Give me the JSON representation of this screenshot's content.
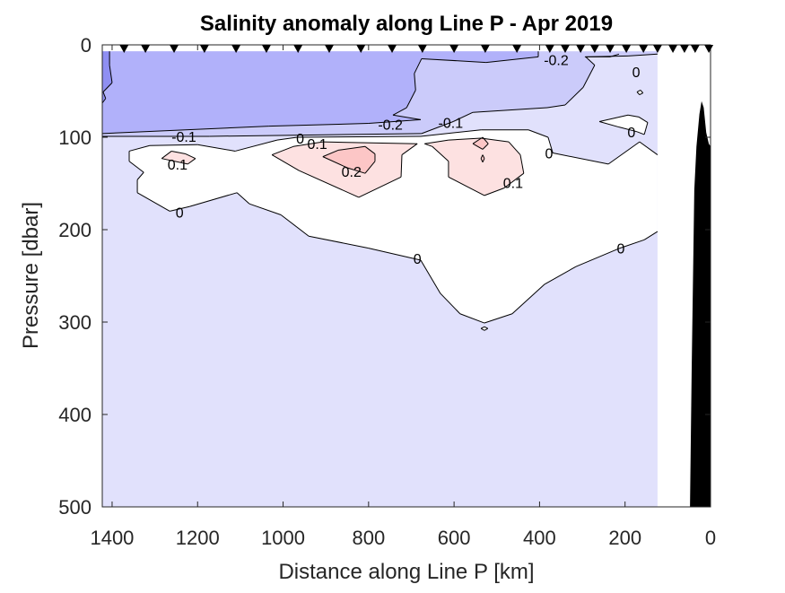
{
  "chart_data": {
    "type": "contour",
    "title": "Salinity anomaly along Line P - Apr 2019",
    "xlabel": "Distance along Line P [km]",
    "ylabel": "Pressure [dbar]",
    "xlim": [
      1423,
      0
    ],
    "ylim": [
      0,
      500
    ],
    "x_reversed": true,
    "y_reversed": true,
    "x_ticks": [
      "1400",
      "1200",
      "1000",
      "800",
      "600",
      "400",
      "200",
      "0"
    ],
    "y_ticks": [
      "0",
      "100",
      "200",
      "300",
      "400",
      "500"
    ],
    "grid": false,
    "contour_levels": [
      -0.3,
      -0.2,
      -0.1,
      0,
      0.1,
      0.2
    ],
    "colors": {
      "below_-0.3": "#8f8ff2",
      "-0.3_to_-0.2": "#b1b1fa",
      "-0.2_to_-0.1": "#cbcbfa",
      "-0.1_to_0": "#e1e1fc",
      "0_to_0.1": "#ffffff",
      "0.1_to_0.2": "#fde1e1",
      "above_0.2": "#fcc6c6",
      "bathymetry": "#000000"
    },
    "regions": [
      {
        "level": "-0.1_to_0",
        "points": [
          [
            1423,
            7
          ],
          [
            124,
            7
          ],
          [
            124,
            500
          ],
          [
            1423,
            500
          ]
        ]
      },
      {
        "level": "-0.2_to_-0.1",
        "points": [
          [
            1423,
            7
          ],
          [
            124,
            7
          ],
          [
            124,
            10
          ],
          [
            193,
            12
          ],
          [
            292,
            13
          ],
          [
            271,
            22
          ],
          [
            298,
            46
          ],
          [
            340,
            65
          ],
          [
            382,
            68
          ],
          [
            556,
            73
          ],
          [
            602,
            83
          ],
          [
            676,
            96
          ],
          [
            1173,
            99
          ],
          [
            1423,
            99
          ]
        ]
      },
      {
        "level": "-0.3_to_-0.2",
        "points": [
          [
            1423,
            7
          ],
          [
            403,
            7
          ],
          [
            403,
            13
          ],
          [
            525,
            19
          ],
          [
            676,
            15
          ],
          [
            693,
            31
          ],
          [
            690,
            49
          ],
          [
            711,
            68
          ],
          [
            743,
            76
          ],
          [
            678,
            81
          ],
          [
            800,
            85
          ],
          [
            1033,
            88
          ],
          [
            1423,
            96
          ]
        ]
      },
      {
        "level": "below_-0.3",
        "points": [
          [
            1423,
            7
          ],
          [
            1406,
            7
          ],
          [
            1406,
            22
          ],
          [
            1400,
            41
          ],
          [
            1421,
            51
          ],
          [
            1415,
            58
          ],
          [
            1423,
            63
          ]
        ]
      },
      {
        "level": "0_to_0.1",
        "points": [
          [
            1360,
            115
          ],
          [
            1312,
            109
          ],
          [
            1200,
            108
          ],
          [
            1112,
            115
          ],
          [
            1014,
            103
          ],
          [
            967,
            100
          ],
          [
            678,
            99
          ],
          [
            537,
            92
          ],
          [
            426,
            92
          ],
          [
            380,
            100
          ],
          [
            369,
            117
          ],
          [
            239,
            129
          ],
          [
            166,
            105
          ],
          [
            124,
            119
          ],
          [
            124,
            202
          ],
          [
            155,
            211
          ],
          [
            212,
            220
          ],
          [
            315,
            240
          ],
          [
            388,
            259
          ],
          [
            464,
            291
          ],
          [
            529,
            301
          ],
          [
            586,
            291
          ],
          [
            632,
            269
          ],
          [
            678,
            233
          ],
          [
            800,
            220
          ],
          [
            940,
            207
          ],
          [
            1005,
            184
          ],
          [
            1079,
            172
          ],
          [
            1108,
            160
          ],
          [
            1219,
            175
          ],
          [
            1265,
            180
          ],
          [
            1341,
            160
          ],
          [
            1341,
            146
          ],
          [
            1326,
            138
          ],
          [
            1360,
            126
          ]
        ]
      },
      {
        "level": "0_to_0.1",
        "points": [
          [
            260,
            83
          ],
          [
            193,
            76
          ],
          [
            168,
            78
          ],
          [
            147,
            84
          ],
          [
            155,
            97
          ],
          [
            172,
            94
          ],
          [
            214,
            89
          ]
        ]
      },
      {
        "level": "0_to_0.1",
        "points": [
          [
            172,
            51
          ],
          [
            164,
            49
          ],
          [
            158,
            52
          ],
          [
            166,
            54
          ]
        ]
      },
      {
        "level": "0_to_0.1",
        "points": [
          [
            537,
            307
          ],
          [
            529,
            305
          ],
          [
            521,
            307
          ],
          [
            529,
            309
          ]
        ]
      },
      {
        "level": "0.1_to_0.2",
        "points": [
          [
            1284,
            123
          ],
          [
            1261,
            115
          ],
          [
            1228,
            118
          ],
          [
            1205,
            123
          ],
          [
            1223,
            129
          ]
        ]
      },
      {
        "level": "0.1_to_0.2",
        "points": [
          [
            1026,
            119
          ],
          [
            976,
            110
          ],
          [
            907,
            105
          ],
          [
            686,
            107
          ],
          [
            722,
            119
          ],
          [
            724,
            143
          ],
          [
            823,
            165
          ],
          [
            963,
            136
          ]
        ]
      },
      {
        "level": "0.1_to_0.2",
        "points": [
          [
            669,
            107
          ],
          [
            613,
            103
          ],
          [
            537,
            101
          ],
          [
            472,
            105
          ],
          [
            445,
            119
          ],
          [
            437,
            139
          ],
          [
            483,
            155
          ],
          [
            529,
            163
          ],
          [
            613,
            143
          ],
          [
            613,
            126
          ],
          [
            651,
            110
          ]
        ]
      },
      {
        "level": "above_0.2",
        "points": [
          [
            907,
            121
          ],
          [
            871,
            114
          ],
          [
            808,
            110
          ],
          [
            785,
            118
          ],
          [
            785,
            126
          ],
          [
            808,
            139
          ],
          [
            850,
            133
          ]
        ]
      },
      {
        "level": "above_0.2",
        "points": [
          [
            556,
            107
          ],
          [
            533,
            100
          ],
          [
            520,
            107
          ],
          [
            533,
            113
          ]
        ]
      },
      {
        "level": "above_0.2",
        "points": [
          [
            533,
            119
          ],
          [
            529,
            123
          ],
          [
            533,
            127
          ],
          [
            537,
            123
          ]
        ]
      }
    ],
    "extra_lines": [
      [
        [
          294,
          13
        ],
        [
          235,
          13
        ],
        [
          214,
          10
        ]
      ]
    ],
    "contour_labels": [
      {
        "text": "-0.2",
        "x": 361,
        "y": 16
      },
      {
        "text": "0",
        "x": 174,
        "y": 29
      },
      {
        "text": "-0.2",
        "x": 749,
        "y": 86
      },
      {
        "text": "-0.1",
        "x": 608,
        "y": 84
      },
      {
        "text": "-0.1",
        "x": 1232,
        "y": 99
      },
      {
        "text": "0",
        "x": 960,
        "y": 101
      },
      {
        "text": "0.1",
        "x": 920,
        "y": 107
      },
      {
        "text": "0.2",
        "x": 840,
        "y": 137
      },
      {
        "text": "0.1",
        "x": 1247,
        "y": 129
      },
      {
        "text": "0",
        "x": 1242,
        "y": 181
      },
      {
        "text": "0",
        "x": 686,
        "y": 231
      },
      {
        "text": "0.1",
        "x": 462,
        "y": 149
      },
      {
        "text": "0",
        "x": 210,
        "y": 220
      },
      {
        "text": "0",
        "x": 185,
        "y": 94
      },
      {
        "text": "0",
        "x": 378,
        "y": 117
      }
    ],
    "stations_km": [
      1372,
      1322,
      1255,
      1184,
      1110,
      1039,
      965,
      892,
      818,
      745,
      674,
      600,
      527,
      453,
      376,
      340,
      304,
      271,
      235,
      197,
      157,
      124,
      88,
      61,
      36,
      4
    ],
    "bathymetry": [
      [
        48,
        500
      ],
      [
        44,
        350
      ],
      [
        38,
        157
      ],
      [
        33,
        110
      ],
      [
        26,
        75
      ],
      [
        21,
        61
      ],
      [
        16,
        68
      ],
      [
        10,
        95
      ],
      [
        4,
        107
      ],
      [
        0,
        110
      ],
      [
        0,
        500
      ]
    ]
  }
}
